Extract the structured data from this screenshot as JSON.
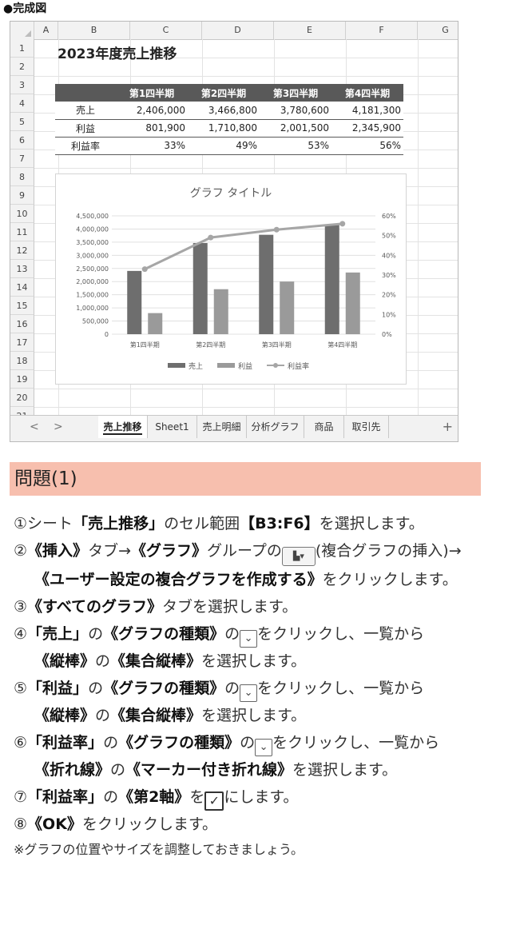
{
  "caption": "●完成図",
  "sheet": {
    "columns": [
      "A",
      "B",
      "C",
      "D",
      "E",
      "F",
      "G"
    ],
    "rows": [
      "1",
      "2",
      "3",
      "4",
      "5",
      "6",
      "7",
      "8",
      "9",
      "10",
      "11",
      "12",
      "13",
      "14",
      "15",
      "16",
      "17",
      "18",
      "19",
      "20",
      "21"
    ],
    "title": "2023年度売上推移",
    "table": {
      "headers": [
        "",
        "第1四半期",
        "第2四半期",
        "第3四半期",
        "第4四半期"
      ],
      "rows": [
        [
          "売上",
          "2,406,000",
          "3,466,800",
          "3,780,600",
          "4,181,300"
        ],
        [
          "利益",
          "801,900",
          "1,710,800",
          "2,001,500",
          "2,345,900"
        ],
        [
          "利益率",
          "33%",
          "49%",
          "53%",
          "56%"
        ]
      ]
    },
    "tabs": [
      "売上推移",
      "Sheet1",
      "売上明細",
      "分析グラフ",
      "商品",
      "取引先"
    ],
    "active_tab": "売上推移",
    "nav": {
      "prev": "<",
      "next": ">",
      "add": "+"
    }
  },
  "chart_data": {
    "type": "bar",
    "title": "グラフ タイトル",
    "categories": [
      "第1四半期",
      "第2四半期",
      "第3四半期",
      "第4四半期"
    ],
    "series": [
      {
        "name": "売上",
        "type": "bar",
        "axis": "left",
        "values": [
          2406000,
          3466800,
          3780600,
          4181300
        ],
        "color": "#6e6e6e"
      },
      {
        "name": "利益",
        "type": "bar",
        "axis": "left",
        "values": [
          801900,
          1710800,
          2001500,
          2345900
        ],
        "color": "#9a9a9a"
      },
      {
        "name": "利益率",
        "type": "line-marker",
        "axis": "right",
        "values": [
          0.33,
          0.49,
          0.53,
          0.56
        ],
        "color": "#a6a6a6"
      }
    ],
    "ylim": [
      0,
      4500000
    ],
    "y2lim": [
      0,
      0.6
    ],
    "yticks": [
      "0",
      "500,000",
      "1,000,000",
      "1,500,000",
      "2,000,000",
      "2,500,000",
      "3,000,000",
      "3,500,000",
      "4,000,000",
      "4,500,000"
    ],
    "y2ticks": [
      "0%",
      "10%",
      "20%",
      "30%",
      "40%",
      "50%",
      "60%"
    ],
    "grid": true,
    "legend": "bottom"
  },
  "instructions": {
    "heading": "問題(1)",
    "steps": [
      {
        "num": "①",
        "parts": [
          "シート",
          "「売上推移」",
          "のセル範囲",
          "【B3:F6】",
          "を選択します。"
        ]
      },
      {
        "num": "②",
        "parts": [
          "《挿入》",
          "タブ→",
          "《グラフ》",
          "グループの",
          "(複合グラフの挿入)→",
          "《ユーザー設定の複合グラフを作成する》",
          "をクリックします。"
        ]
      },
      {
        "num": "③",
        "parts": [
          "《すべてのグラフ》",
          "タブを選択します。"
        ]
      },
      {
        "num": "④",
        "parts": [
          "「売上」",
          "の",
          "《グラフの種類》",
          "の",
          "をクリックし、一覧から",
          "《縦棒》",
          "の",
          "《集合縦棒》",
          "を選択します。"
        ]
      },
      {
        "num": "⑤",
        "parts": [
          "「利益」",
          "の",
          "《グラフの種類》",
          "の",
          "をクリックし、一覧から",
          "《縦棒》",
          "の",
          "《集合縦棒》",
          "を選択します。"
        ]
      },
      {
        "num": "⑥",
        "parts": [
          "「利益率」",
          "の",
          "《グラフの種類》",
          "の",
          "をクリックし、一覧から",
          "《折れ線》",
          "の",
          "《マーカー付き折れ線》",
          "を選択します。"
        ]
      },
      {
        "num": "⑦",
        "parts": [
          "「利益率」",
          "の",
          "《第2軸》",
          "を",
          "にします。"
        ]
      },
      {
        "num": "⑧",
        "parts": [
          "《OK》",
          "をクリックします。"
        ]
      }
    ],
    "note": "※グラフの位置やサイズを調整しておきましょう。",
    "icons": {
      "combo_chart": "combo-chart-icon",
      "dropdown": "dropdown-arrow-icon",
      "checkbox": "checked-checkbox-icon"
    }
  }
}
